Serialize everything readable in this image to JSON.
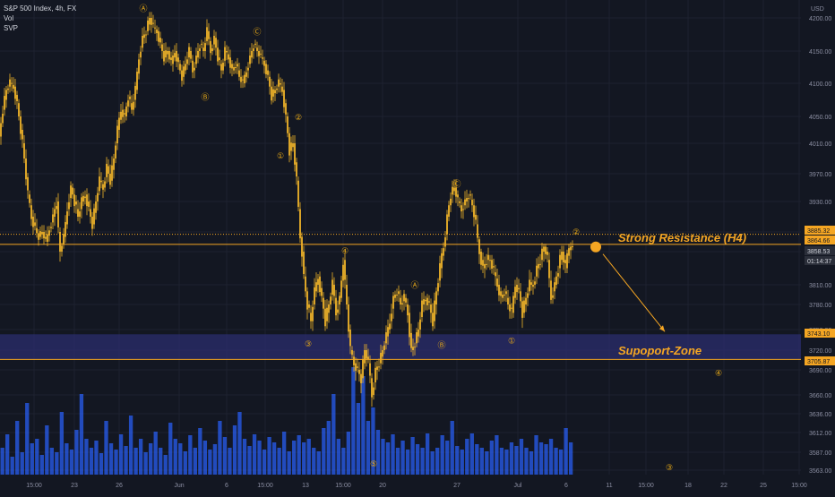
{
  "legend": {
    "symbol_line": "S&P 500 Index, 4h, FX",
    "indicator_1": "Vol",
    "indicator_2": "SVP"
  },
  "colors": {
    "background": "#131722",
    "grid": "#1e2230",
    "candle": "#f0b429",
    "volume": "#2962ff",
    "wave_label": "#e6a817",
    "support_zone": "#2b2d6e",
    "axis_text": "#8c8fa3",
    "tag_orange": "#f5a623",
    "tag_dark": "#2a2e39"
  },
  "chart_data": {
    "type": "candlestick",
    "title": "S&P 500 Index, 4h, FX",
    "currency": "USD",
    "y_ticks": [
      4200,
      4150,
      4100,
      4050,
      4010,
      3970,
      3930,
      3890,
      3850,
      3810,
      3780,
      3750,
      3720,
      3690,
      3660,
      3636,
      3612,
      3587,
      3563
    ],
    "y_tick_labels": [
      "4200.00",
      "4150.00",
      "4100.00",
      "4050.00",
      "4010.00",
      "3970.00",
      "3930.00",
      "3890.00",
      "3850.00",
      "3810.00",
      "3780.00",
      "3750.00",
      "3720.00",
      "3690.00",
      "3660.00",
      "3636.00",
      "3612.00",
      "3587.00",
      "3563.00"
    ],
    "x_labels": [
      "15:00",
      "23",
      "26",
      "Jun",
      "6",
      "15:00",
      "13",
      "15:00",
      "20",
      "27",
      "Jul",
      "6",
      "11",
      "15:00",
      "18",
      "22",
      "25",
      "15:00",
      "29",
      "15:0"
    ],
    "price_tags": [
      {
        "label": "3885.32",
        "value": 3885.32,
        "style": "orange"
      },
      {
        "label": "3864.66",
        "value": 3864.66,
        "style": "orange"
      },
      {
        "label": "3858.53",
        "value": 3858.53,
        "style": "dark"
      },
      {
        "label": "01:14:37",
        "value": 3850,
        "style": "dark"
      },
      {
        "label": "3743.10",
        "value": 3743.1,
        "style": "orange"
      },
      {
        "label": "3705.87",
        "value": 3705.87,
        "style": "orange"
      }
    ],
    "close_path": [
      [
        0,
        4020
      ],
      [
        4,
        4060
      ],
      [
        8,
        4090
      ],
      [
        12,
        4100
      ],
      [
        16,
        4095
      ],
      [
        20,
        4070
      ],
      [
        24,
        4030
      ],
      [
        28,
        3990
      ],
      [
        32,
        3940
      ],
      [
        36,
        3910
      ],
      [
        40,
        3895
      ],
      [
        44,
        3880
      ],
      [
        48,
        3890
      ],
      [
        52,
        3870
      ],
      [
        56,
        3895
      ],
      [
        60,
        3910
      ],
      [
        64,
        3930
      ],
      [
        68,
        3850
      ],
      [
        72,
        3880
      ],
      [
        76,
        3920
      ],
      [
        80,
        3950
      ],
      [
        84,
        3930
      ],
      [
        88,
        3910
      ],
      [
        92,
        3930
      ],
      [
        96,
        3940
      ],
      [
        100,
        3920
      ],
      [
        104,
        3900
      ],
      [
        108,
        3930
      ],
      [
        112,
        3960
      ],
      [
        116,
        3950
      ],
      [
        120,
        3980
      ],
      [
        124,
        3960
      ],
      [
        128,
        3990
      ],
      [
        132,
        4030
      ],
      [
        136,
        4060
      ],
      [
        140,
        4050
      ],
      [
        144,
        4080
      ],
      [
        148,
        4060
      ],
      [
        152,
        4090
      ],
      [
        156,
        4140
      ],
      [
        160,
        4170
      ],
      [
        164,
        4180
      ],
      [
        168,
        4200
      ],
      [
        172,
        4185
      ],
      [
        176,
        4180
      ],
      [
        180,
        4160
      ],
      [
        184,
        4140
      ],
      [
        188,
        4150
      ],
      [
        192,
        4130
      ],
      [
        196,
        4150
      ],
      [
        200,
        4130
      ],
      [
        204,
        4110
      ],
      [
        208,
        4130
      ],
      [
        212,
        4150
      ],
      [
        216,
        4120
      ],
      [
        220,
        4140
      ],
      [
        224,
        4160
      ],
      [
        228,
        4150
      ],
      [
        232,
        4180
      ],
      [
        236,
        4150
      ],
      [
        240,
        4170
      ],
      [
        244,
        4140
      ],
      [
        248,
        4120
      ],
      [
        252,
        4150
      ],
      [
        256,
        4140
      ],
      [
        260,
        4120
      ],
      [
        264,
        4130
      ],
      [
        268,
        4110
      ],
      [
        272,
        4100
      ],
      [
        276,
        4120
      ],
      [
        280,
        4140
      ],
      [
        284,
        4160
      ],
      [
        288,
        4150
      ],
      [
        292,
        4140
      ],
      [
        296,
        4130
      ],
      [
        300,
        4110
      ],
      [
        304,
        4080
      ],
      [
        308,
        4090
      ],
      [
        312,
        4100
      ],
      [
        316,
        4090
      ],
      [
        320,
        4050
      ],
      [
        324,
        4000
      ],
      [
        328,
        4010
      ],
      [
        332,
        3960
      ],
      [
        336,
        3880
      ],
      [
        340,
        3820
      ],
      [
        344,
        3780
      ],
      [
        348,
        3760
      ],
      [
        352,
        3800
      ],
      [
        356,
        3820
      ],
      [
        360,
        3790
      ],
      [
        364,
        3760
      ],
      [
        368,
        3780
      ],
      [
        372,
        3810
      ],
      [
        376,
        3770
      ],
      [
        380,
        3790
      ],
      [
        384,
        3840
      ],
      [
        388,
        3780
      ],
      [
        392,
        3720
      ],
      [
        396,
        3700
      ],
      [
        400,
        3690
      ],
      [
        404,
        3680
      ],
      [
        408,
        3720
      ],
      [
        412,
        3700
      ],
      [
        416,
        3660
      ],
      [
        420,
        3690
      ],
      [
        424,
        3700
      ],
      [
        428,
        3720
      ],
      [
        432,
        3740
      ],
      [
        436,
        3760
      ],
      [
        440,
        3790
      ],
      [
        444,
        3800
      ],
      [
        448,
        3780
      ],
      [
        452,
        3790
      ],
      [
        456,
        3770
      ],
      [
        460,
        3720
      ],
      [
        464,
        3730
      ],
      [
        468,
        3750
      ],
      [
        472,
        3780
      ],
      [
        476,
        3790
      ],
      [
        480,
        3780
      ],
      [
        484,
        3760
      ],
      [
        488,
        3800
      ],
      [
        492,
        3830
      ],
      [
        496,
        3860
      ],
      [
        500,
        3910
      ],
      [
        504,
        3940
      ],
      [
        508,
        3950
      ],
      [
        512,
        3930
      ],
      [
        516,
        3920
      ],
      [
        520,
        3930
      ],
      [
        524,
        3940
      ],
      [
        528,
        3925
      ],
      [
        532,
        3900
      ],
      [
        536,
        3850
      ],
      [
        540,
        3830
      ],
      [
        544,
        3840
      ],
      [
        548,
        3840
      ],
      [
        552,
        3825
      ],
      [
        556,
        3810
      ],
      [
        560,
        3790
      ],
      [
        564,
        3800
      ],
      [
        568,
        3780
      ],
      [
        572,
        3770
      ],
      [
        576,
        3810
      ],
      [
        580,
        3800
      ],
      [
        584,
        3770
      ],
      [
        588,
        3790
      ],
      [
        592,
        3810
      ],
      [
        596,
        3810
      ],
      [
        600,
        3830
      ],
      [
        604,
        3840
      ],
      [
        608,
        3860
      ],
      [
        612,
        3840
      ],
      [
        616,
        3790
      ],
      [
        620,
        3810
      ],
      [
        624,
        3830
      ],
      [
        628,
        3850
      ],
      [
        632,
        3830
      ],
      [
        636,
        3860
      ],
      [
        640,
        3858
      ]
    ],
    "volume_heights": [
      30,
      45,
      20,
      60,
      25,
      80,
      35,
      40,
      22,
      55,
      30,
      25,
      70,
      35,
      28,
      50,
      90,
      40,
      30,
      38,
      24,
      60,
      35,
      28,
      45,
      32,
      66,
      30,
      40,
      25,
      35,
      48,
      30,
      22,
      58,
      40,
      35,
      26,
      44,
      30,
      52,
      38,
      28,
      34,
      60,
      42,
      30,
      55,
      70,
      40,
      32,
      45,
      38,
      28,
      42,
      36,
      30,
      48,
      26,
      38,
      44,
      36,
      40,
      30,
      26,
      52,
      60,
      90,
      40,
      30,
      48,
      120,
      80,
      110,
      60,
      75,
      50,
      40,
      36,
      45,
      30,
      38,
      28,
      42,
      34,
      30,
      46,
      26,
      30,
      44,
      38,
      60,
      32,
      28,
      40,
      46,
      34,
      30,
      26,
      38,
      44,
      30,
      28,
      36,
      32,
      40,
      30,
      26,
      44,
      36,
      34,
      40,
      30,
      28,
      52,
      36
    ],
    "wave_labels": [
      {
        "text": "Ⓐ",
        "x": 160,
        "price": 4210
      },
      {
        "text": "Ⓑ",
        "x": 229,
        "price": 4075
      },
      {
        "text": "Ⓒ",
        "x": 287,
        "price": 4175
      },
      {
        "text": "②",
        "x": 333,
        "price": 4045
      },
      {
        "text": "①",
        "x": 313,
        "price": 3990
      },
      {
        "text": "④",
        "x": 385,
        "price": 3848
      },
      {
        "text": "③",
        "x": 344,
        "price": 3725
      },
      {
        "text": "⑤",
        "x": 417,
        "price": 3568
      },
      {
        "text": "Ⓐ",
        "x": 463,
        "price": 3805
      },
      {
        "text": "Ⓑ",
        "x": 493,
        "price": 3723
      },
      {
        "text": "Ⓒ",
        "x": 510,
        "price": 3951
      },
      {
        "text": "①",
        "x": 571,
        "price": 3730
      },
      {
        "text": "②",
        "x": 643,
        "price": 3885
      },
      {
        "text": "④",
        "x": 802,
        "price": 3683
      },
      {
        "text": "③",
        "x": 747,
        "price": 3561
      }
    ],
    "horizontal_lines": [
      {
        "price": 3864.66,
        "style": "solid"
      },
      {
        "price": 3885.32,
        "style": "dotted"
      },
      {
        "price": 3705.87,
        "style": "solid"
      }
    ],
    "zone": {
      "top": 3743.1,
      "bottom": 3705.87
    },
    "arrow": {
      "from": [
        666,
        3856
      ],
      "to": [
        742,
        3747
      ]
    },
    "annotations": [
      {
        "text": "Strong Resistance (H4)",
        "x": 690,
        "price": 3870
      },
      {
        "text": "Supoport-Zone",
        "x": 690,
        "price": 3713
      }
    ]
  }
}
